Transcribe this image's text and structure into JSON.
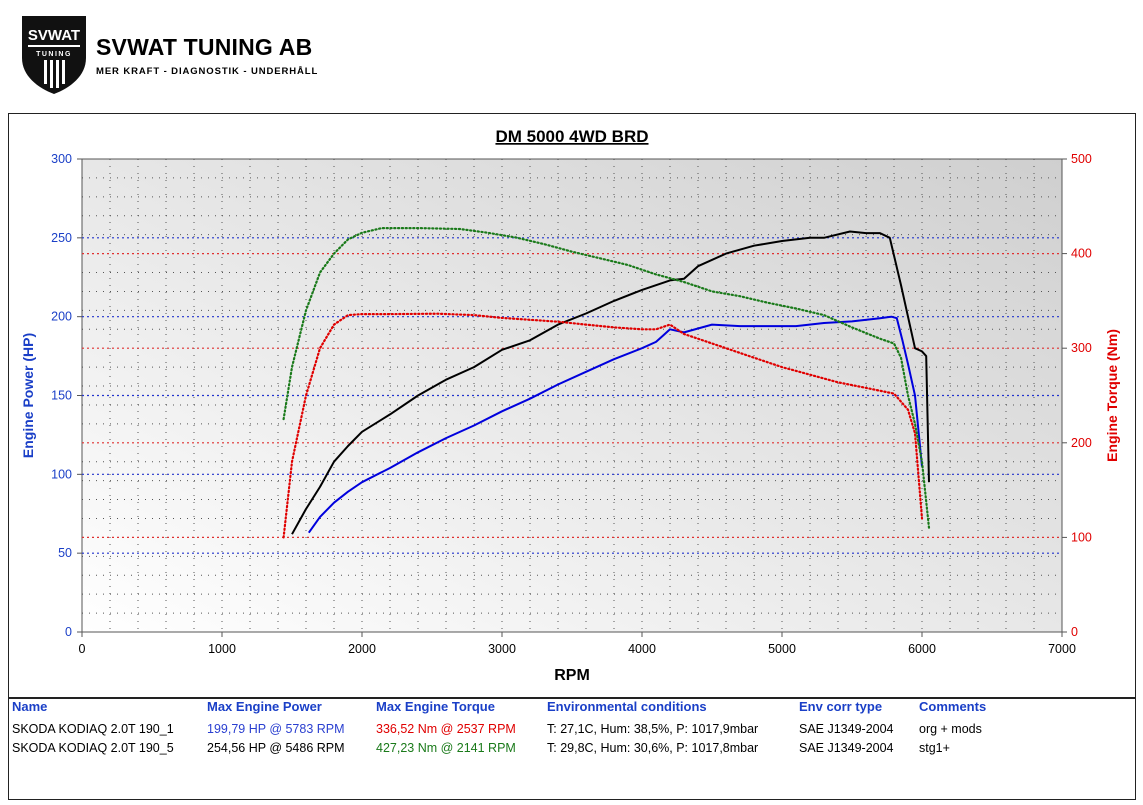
{
  "header": {
    "logo_text_top": "SVWAT",
    "logo_text_bottom": "TUNING",
    "company": "SVWAT TUNING AB",
    "slogan": "MER KRAFT - DIAGNOSTIK - UNDERHÅLL"
  },
  "chart_data": {
    "type": "line",
    "title": "DM 5000 4WD BRD",
    "xlabel": "RPM",
    "ylabel_left": "Engine Power (HP)",
    "ylabel_right": "Engine Torque (Nm)",
    "xlim": [
      0,
      7000
    ],
    "ylim_left": [
      0,
      300
    ],
    "ylim_right": [
      0,
      500
    ],
    "x_ticks": [
      0,
      1000,
      2000,
      3000,
      4000,
      5000,
      6000,
      7000
    ],
    "y_left_ticks": [
      0,
      50,
      100,
      150,
      200,
      250,
      300
    ],
    "y_right_ticks": [
      0,
      100,
      200,
      300,
      400,
      500
    ],
    "grid": true,
    "series": [
      {
        "axis": "left",
        "style": "solid",
        "color": "#0000dd",
        "x": [
          1620,
          1700,
          1800,
          1900,
          2000,
          2200,
          2400,
          2600,
          2800,
          3000,
          3200,
          3400,
          3600,
          3800,
          4000,
          4100,
          4150,
          4200,
          4300,
          4500,
          4700,
          4900,
          5100,
          5300,
          5500,
          5700,
          5783,
          5820,
          5860,
          5900,
          5950,
          6000
        ],
        "y": [
          63,
          73,
          82,
          89,
          95,
          104,
          114,
          123,
          131,
          140,
          148,
          157,
          165,
          173,
          180,
          184,
          188,
          192,
          190,
          195,
          194,
          194,
          194,
          196,
          197,
          199,
          200,
          199,
          185,
          170,
          150,
          105
        ]
      },
      {
        "axis": "left",
        "style": "solid",
        "color": "#000000",
        "x": [
          1500,
          1600,
          1700,
          1800,
          1900,
          2000,
          2200,
          2400,
          2600,
          2800,
          3000,
          3200,
          3400,
          3600,
          3800,
          4000,
          4200,
          4300,
          4400,
          4600,
          4800,
          5000,
          5200,
          5300,
          5486,
          5600,
          5700,
          5770,
          5850,
          5900,
          5950,
          6000,
          6030,
          6050
        ],
        "y": [
          62,
          78,
          92,
          108,
          118,
          127,
          138,
          150,
          160,
          168,
          179,
          185,
          195,
          202,
          210,
          217,
          223,
          224,
          232,
          240,
          245,
          248,
          250,
          250,
          254,
          253,
          253,
          250,
          220,
          200,
          180,
          178,
          175,
          95
        ]
      },
      {
        "axis": "right",
        "style": "dotted",
        "color": "#e00000",
        "x": [
          1440,
          1500,
          1600,
          1700,
          1800,
          1900,
          2000,
          2200,
          2537,
          2800,
          3000,
          3200,
          3400,
          3600,
          3800,
          4000,
          4100,
          4200,
          4300,
          4400,
          4600,
          4800,
          5000,
          5200,
          5400,
          5600,
          5800,
          5900,
          5950,
          6000
        ],
        "y": [
          100,
          180,
          250,
          300,
          325,
          335,
          336,
          336,
          336.5,
          335,
          332,
          330,
          328,
          325,
          322,
          320,
          320,
          325,
          315,
          310,
          300,
          290,
          280,
          272,
          264,
          258,
          252,
          235,
          210,
          120
        ]
      },
      {
        "axis": "right",
        "style": "dotted",
        "color": "#1a7a1a",
        "x": [
          1440,
          1500,
          1600,
          1700,
          1800,
          1900,
          2000,
          2141,
          2400,
          2700,
          2900,
          3100,
          3300,
          3500,
          3700,
          3900,
          4100,
          4300,
          4500,
          4700,
          4900,
          5100,
          5300,
          5500,
          5700,
          5800,
          5850,
          5900,
          5950,
          6000,
          6050
        ],
        "y": [
          225,
          280,
          340,
          380,
          400,
          415,
          422,
          427,
          427,
          426,
          422,
          417,
          410,
          402,
          395,
          388,
          378,
          370,
          360,
          355,
          348,
          342,
          335,
          322,
          310,
          305,
          290,
          250,
          220,
          180,
          110
        ]
      }
    ]
  },
  "results": {
    "headers": {
      "name": "Name",
      "power": "Max Engine Power",
      "torque": "Max Engine Torque",
      "env": "Environmental conditions",
      "corr": "Env corr type",
      "comments": "Comments"
    },
    "rows": [
      {
        "name": "SKODA KODIAQ 2.0T 190_1",
        "power": "199,79 HP @ 5783 RPM",
        "torque": "336,52 Nm @ 2537 RPM",
        "env": "T: 27,1C, Hum: 38,5%, P: 1017,9mbar",
        "corr": "SAE J1349-2004",
        "comments": "org + mods",
        "power_color": "#2a3fd0",
        "torque_color": "#e00000"
      },
      {
        "name": "SKODA KODIAQ 2.0T 190_5",
        "power": "254,56 HP @ 5486 RPM",
        "torque": "427,23 Nm @ 2141 RPM",
        "env": "T: 29,8C, Hum: 30,6%, P: 1017,8mbar",
        "corr": "SAE J1349-2004",
        "comments": "stg1+",
        "power_color": "#000000",
        "torque_color": "#1a7a1a"
      }
    ]
  }
}
